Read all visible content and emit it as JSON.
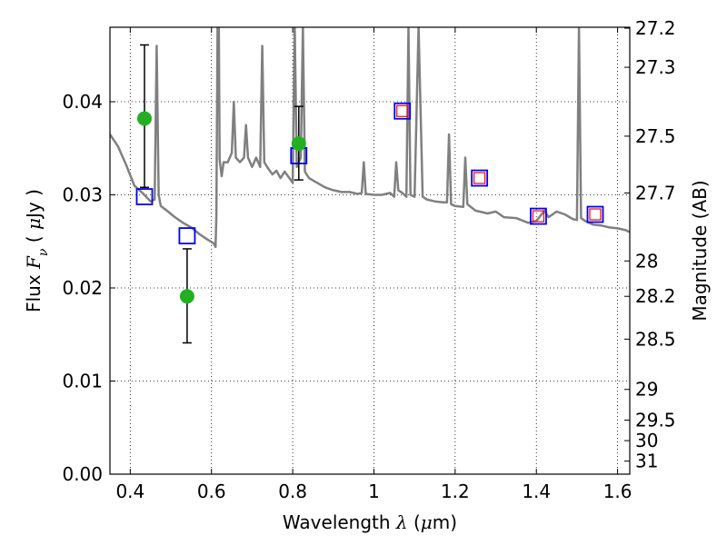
{
  "chart_data": {
    "type": "scatter",
    "xlabel": "Wavelength  λ (μm)",
    "ylabel": "Flux  F_ν  ( μJy )",
    "y2label": "Magnitude (AB)",
    "xlim": [
      0.35,
      1.63
    ],
    "ylim": [
      0.0,
      0.048
    ],
    "x_ticks": [
      0.4,
      0.6,
      0.8,
      1.0,
      1.2,
      1.4,
      1.6
    ],
    "x_tick_labels": [
      "0.4",
      "0.6",
      "0.8",
      "1",
      "1.2",
      "1.4",
      "1.6"
    ],
    "y_ticks": [
      0.0,
      0.01,
      0.02,
      0.03,
      0.04
    ],
    "y_tick_labels": [
      "0.00",
      "0.01",
      "0.02",
      "0.03",
      "0.04"
    ],
    "y2_ticks": [
      {
        "label": "27.2",
        "flux": 0.0479
      },
      {
        "label": "27.3",
        "flux": 0.0437
      },
      {
        "label": "27.5",
        "flux": 0.0363
      },
      {
        "label": "27.7",
        "flux": 0.0302
      },
      {
        "label": "28",
        "flux": 0.0229
      },
      {
        "label": "28.2",
        "flux": 0.0191
      },
      {
        "label": "28.5",
        "flux": 0.0145
      },
      {
        "label": "29",
        "flux": 0.0091
      },
      {
        "label": "29.5",
        "flux": 0.0058
      },
      {
        "label": "30",
        "flux": 0.0036
      },
      {
        "label": "31",
        "flux": 0.0014
      }
    ],
    "grid": true,
    "series": [
      {
        "kind": "line",
        "color": "#808080",
        "x": [
          0.35,
          0.37,
          0.39,
          0.41,
          0.43,
          0.45,
          0.46,
          0.465,
          0.47,
          0.475,
          0.49,
          0.51,
          0.53,
          0.55,
          0.57,
          0.59,
          0.605,
          0.61,
          0.612,
          0.615,
          0.618,
          0.62,
          0.625,
          0.63,
          0.64,
          0.65,
          0.655,
          0.66,
          0.67,
          0.68,
          0.685,
          0.69,
          0.7,
          0.71,
          0.72,
          0.725,
          0.73,
          0.74,
          0.75,
          0.76,
          0.77,
          0.78,
          0.8,
          0.805,
          0.81,
          0.82,
          0.825,
          0.83,
          0.84,
          0.86,
          0.88,
          0.9,
          0.92,
          0.94,
          0.96,
          0.97,
          0.975,
          0.98,
          1.0,
          1.02,
          1.04,
          1.05,
          1.055,
          1.06,
          1.07,
          1.08,
          1.085,
          1.09,
          1.1,
          1.11,
          1.12,
          1.13,
          1.15,
          1.17,
          1.18,
          1.185,
          1.19,
          1.2,
          1.22,
          1.225,
          1.23,
          1.25,
          1.28,
          1.3,
          1.32,
          1.35,
          1.38,
          1.4,
          1.42,
          1.43,
          1.45,
          1.47,
          1.49,
          1.5,
          1.505,
          1.51,
          1.52,
          1.54,
          1.56,
          1.58,
          1.6,
          1.62,
          1.63
        ],
        "y": [
          0.0365,
          0.0352,
          0.0332,
          0.031,
          0.0302,
          0.0293,
          0.0295,
          0.046,
          0.03,
          0.0288,
          0.0283,
          0.0276,
          0.027,
          0.0265,
          0.0258,
          0.0252,
          0.0248,
          0.0244,
          0.0278,
          0.048,
          0.048,
          0.0338,
          0.032,
          0.0335,
          0.0335,
          0.0345,
          0.04,
          0.034,
          0.0335,
          0.034,
          0.0375,
          0.034,
          0.033,
          0.034,
          0.033,
          0.046,
          0.0335,
          0.0328,
          0.0322,
          0.0326,
          0.0318,
          0.0325,
          0.0313,
          0.048,
          0.033,
          0.034,
          0.048,
          0.0325,
          0.0318,
          0.0313,
          0.0308,
          0.0305,
          0.0303,
          0.0303,
          0.0301,
          0.0302,
          0.0335,
          0.0301,
          0.03,
          0.03,
          0.0302,
          0.0298,
          0.0335,
          0.0305,
          0.0302,
          0.0298,
          0.048,
          0.03,
          0.0298,
          0.048,
          0.0298,
          0.0295,
          0.0293,
          0.0292,
          0.0292,
          0.0365,
          0.029,
          0.0288,
          0.0287,
          0.034,
          0.029,
          0.0283,
          0.028,
          0.0282,
          0.0276,
          0.0275,
          0.027,
          0.0272,
          0.0283,
          0.0276,
          0.0282,
          0.0279,
          0.0274,
          0.0273,
          0.048,
          0.0275,
          0.0272,
          0.0268,
          0.0267,
          0.0265,
          0.0264,
          0.0262,
          0.026
        ]
      },
      {
        "kind": "squares",
        "color": "#0000ff",
        "x": [
          0.435,
          0.54,
          0.815,
          1.07,
          1.26,
          1.405,
          1.545
        ],
        "y": [
          0.0298,
          0.0256,
          0.0342,
          0.039,
          0.0318,
          0.0277,
          0.0279
        ]
      },
      {
        "kind": "squares",
        "color": "#ff0000",
        "x": [
          1.07,
          1.26,
          1.405,
          1.545
        ],
        "y": [
          0.039,
          0.0318,
          0.0277,
          0.0279
        ]
      },
      {
        "kind": "points",
        "color": "#22b022",
        "x": [
          0.435,
          0.54,
          0.815
        ],
        "y": [
          0.0382,
          0.0191,
          0.0355
        ],
        "err_low": [
          0.0308,
          0.0141,
          0.0316
        ],
        "err_high": [
          0.0461,
          0.0242,
          0.0395
        ]
      }
    ]
  }
}
